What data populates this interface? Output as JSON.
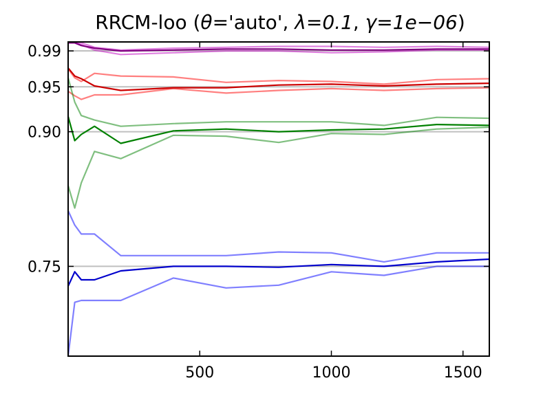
{
  "chart_data": {
    "type": "line",
    "title": "RRCM-loo (θ='auto', λ=0.1, γ=1e−06)",
    "title_parts": {
      "prefix": "RRCM-loo (",
      "theta": "θ",
      "theta_eq": "=",
      "theta_val": "'auto'",
      "sep1": ", ",
      "lambda": "λ",
      "lambda_eq": "=",
      "lambda_val": "0.1",
      "sep2": ", ",
      "gamma": "γ",
      "gamma_eq": "=",
      "gamma_val": "1e−06",
      "suffix": ")"
    },
    "xlabel": "",
    "ylabel": "",
    "xlim": [
      0,
      1600
    ],
    "ylim": [
      0.65,
      1.0
    ],
    "xticks": [
      500,
      1000,
      1500
    ],
    "xtick_labels": [
      "500",
      "1000",
      "1500"
    ],
    "yticks": [
      0.75,
      0.9,
      0.95,
      0.99
    ],
    "ytick_labels": [
      "0.75",
      "0.90",
      "0.95",
      "0.99"
    ],
    "reference_lines": [
      0.75,
      0.9,
      0.95,
      0.99
    ],
    "reference_color": "#bfbfbf",
    "grid": false,
    "legend": "none",
    "x": [
      0,
      25,
      50,
      100,
      200,
      400,
      600,
      800,
      1000,
      1200,
      1400,
      1600
    ],
    "series": [
      {
        "color": "#bf00bf",
        "opacity": 0.5,
        "values": [
          0.999,
          0.999,
          0.999,
          0.994,
          0.991,
          0.993,
          0.994,
          0.995,
          0.995,
          0.994,
          0.995,
          0.994
        ]
      },
      {
        "color": "#bf00bf",
        "opacity": 0.5,
        "values": [
          0.999,
          0.999,
          0.997,
          0.991,
          0.986,
          0.988,
          0.99,
          0.99,
          0.988,
          0.989,
          0.991,
          0.991
        ]
      },
      {
        "color": "#800080",
        "opacity": 1.0,
        "values": [
          0.999,
          0.999,
          0.996,
          0.993,
          0.99,
          0.991,
          0.992,
          0.992,
          0.991,
          0.991,
          0.992,
          0.992
        ]
      },
      {
        "color": "#ff0000",
        "opacity": 0.5,
        "values": [
          0.97,
          0.96,
          0.956,
          0.965,
          0.962,
          0.961,
          0.955,
          0.957,
          0.956,
          0.953,
          0.958,
          0.959
        ]
      },
      {
        "color": "#ff0000",
        "opacity": 0.5,
        "values": [
          0.945,
          0.94,
          0.936,
          0.941,
          0.941,
          0.948,
          0.943,
          0.946,
          0.948,
          0.946,
          0.948,
          0.949
        ]
      },
      {
        "color": "#cc0000",
        "opacity": 1.0,
        "values": [
          0.971,
          0.962,
          0.959,
          0.951,
          0.946,
          0.949,
          0.949,
          0.952,
          0.953,
          0.951,
          0.953,
          0.954
        ]
      },
      {
        "color": "#008000",
        "opacity": 0.5,
        "values": [
          0.96,
          0.933,
          0.918,
          0.913,
          0.906,
          0.909,
          0.911,
          0.911,
          0.911,
          0.907,
          0.916,
          0.915
        ]
      },
      {
        "color": "#008000",
        "opacity": 0.5,
        "values": [
          0.84,
          0.815,
          0.843,
          0.878,
          0.87,
          0.896,
          0.895,
          0.888,
          0.898,
          0.897,
          0.903,
          0.905
        ]
      },
      {
        "color": "#008000",
        "opacity": 1.0,
        "values": [
          0.917,
          0.89,
          0.897,
          0.906,
          0.887,
          0.901,
          0.903,
          0.9,
          0.902,
          0.903,
          0.908,
          0.907
        ]
      },
      {
        "color": "#0000ff",
        "opacity": 0.5,
        "values": [
          0.812,
          0.796,
          0.786,
          0.786,
          0.762,
          0.762,
          0.762,
          0.766,
          0.765,
          0.755,
          0.765,
          0.765
        ]
      },
      {
        "color": "#0000ff",
        "opacity": 0.5,
        "values": [
          0.65,
          0.71,
          0.712,
          0.712,
          0.712,
          0.737,
          0.726,
          0.729,
          0.744,
          0.74,
          0.75,
          0.75
        ]
      },
      {
        "color": "#0000cc",
        "opacity": 1.0,
        "values": [
          0.728,
          0.744,
          0.735,
          0.735,
          0.745,
          0.75,
          0.75,
          0.749,
          0.752,
          0.75,
          0.755,
          0.758
        ]
      }
    ]
  }
}
